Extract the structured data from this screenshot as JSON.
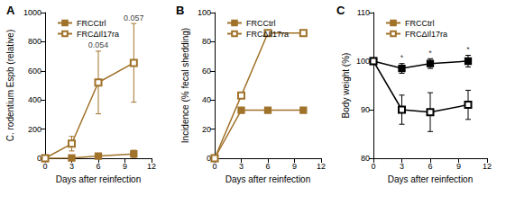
{
  "chart_data": [
    {
      "type": "line",
      "title": "A",
      "xlabel": "Days after reinfection",
      "ylabel": "C. rodentium Espb (relative)",
      "x": [
        0,
        3,
        6,
        10
      ],
      "xlim": [
        0,
        12
      ],
      "xticks": [
        0,
        3,
        6,
        9,
        12
      ],
      "ylim": [
        0,
        1000
      ],
      "yticks": [
        0,
        200,
        400,
        600,
        800,
        1000
      ],
      "grid": false,
      "legend": "upper left",
      "series": [
        {
          "name": "FRCCtrl",
          "color": "#a0722a",
          "marker": "square",
          "line_style": "solid",
          "values": [
            0,
            2,
            15,
            30
          ],
          "errors": [
            0,
            3,
            12,
            25
          ]
        },
        {
          "name": "FRCΔIl17ra",
          "color": "#a0722a",
          "marker": "square-open",
          "line_style": "solid",
          "values": [
            0,
            100,
            520,
            655
          ],
          "errors": [
            0,
            50,
            215,
            270
          ]
        }
      ],
      "annotations": [
        {
          "x": 6,
          "y": 735,
          "text": "0.054"
        },
        {
          "x": 10,
          "y": 925,
          "text": "0.057"
        }
      ]
    },
    {
      "type": "line",
      "title": "B",
      "xlabel": "Days after reinfection",
      "ylabel": "Incidence (% fecal shedding)",
      "x": [
        0,
        3,
        6,
        10
      ],
      "xlim": [
        0,
        12
      ],
      "xticks": [
        0,
        3,
        6,
        9,
        12
      ],
      "ylim": [
        0,
        100
      ],
      "yticks": [
        0,
        20,
        40,
        60,
        80,
        100
      ],
      "grid": false,
      "legend": "upper left",
      "series": [
        {
          "name": "FRCCtrl",
          "color": "#a0722a",
          "marker": "square",
          "line_style": "solid",
          "values": [
            0,
            33,
            33,
            33
          ]
        },
        {
          "name": "FRCΔIl17ra",
          "color": "#a0722a",
          "marker": "square-open",
          "line_style": "solid",
          "values": [
            0,
            43,
            86,
            86
          ]
        }
      ]
    },
    {
      "type": "line",
      "title": "C",
      "xlabel": "Days after reinfection",
      "ylabel": "Body weight (%)",
      "x": [
        0,
        3,
        6,
        10
      ],
      "xlim": [
        0,
        12
      ],
      "xticks": [
        0,
        3,
        6,
        9,
        12
      ],
      "ylim": [
        80,
        110
      ],
      "yticks": [
        80,
        90,
        100,
        110
      ],
      "grid": false,
      "legend": "upper left",
      "series": [
        {
          "name": "FRCCtrl",
          "color": "#000000",
          "marker": "square",
          "line_style": "solid",
          "values": [
            100,
            98.5,
            99.5,
            100
          ],
          "errors": [
            0,
            1,
            1,
            1.2
          ]
        },
        {
          "name": "FRCΔIl17ra",
          "color": "#000000",
          "marker": "square-open",
          "line_style": "solid",
          "values": [
            100,
            90,
            89.5,
            91
          ],
          "errors": [
            0,
            3,
            4,
            3
          ]
        }
      ],
      "annotations": [
        {
          "x": 3,
          "y": 99.5,
          "text": "*"
        },
        {
          "x": 6,
          "y": 100.5,
          "text": "*"
        },
        {
          "x": 10,
          "y": 101.2,
          "text": "*"
        }
      ]
    }
  ]
}
